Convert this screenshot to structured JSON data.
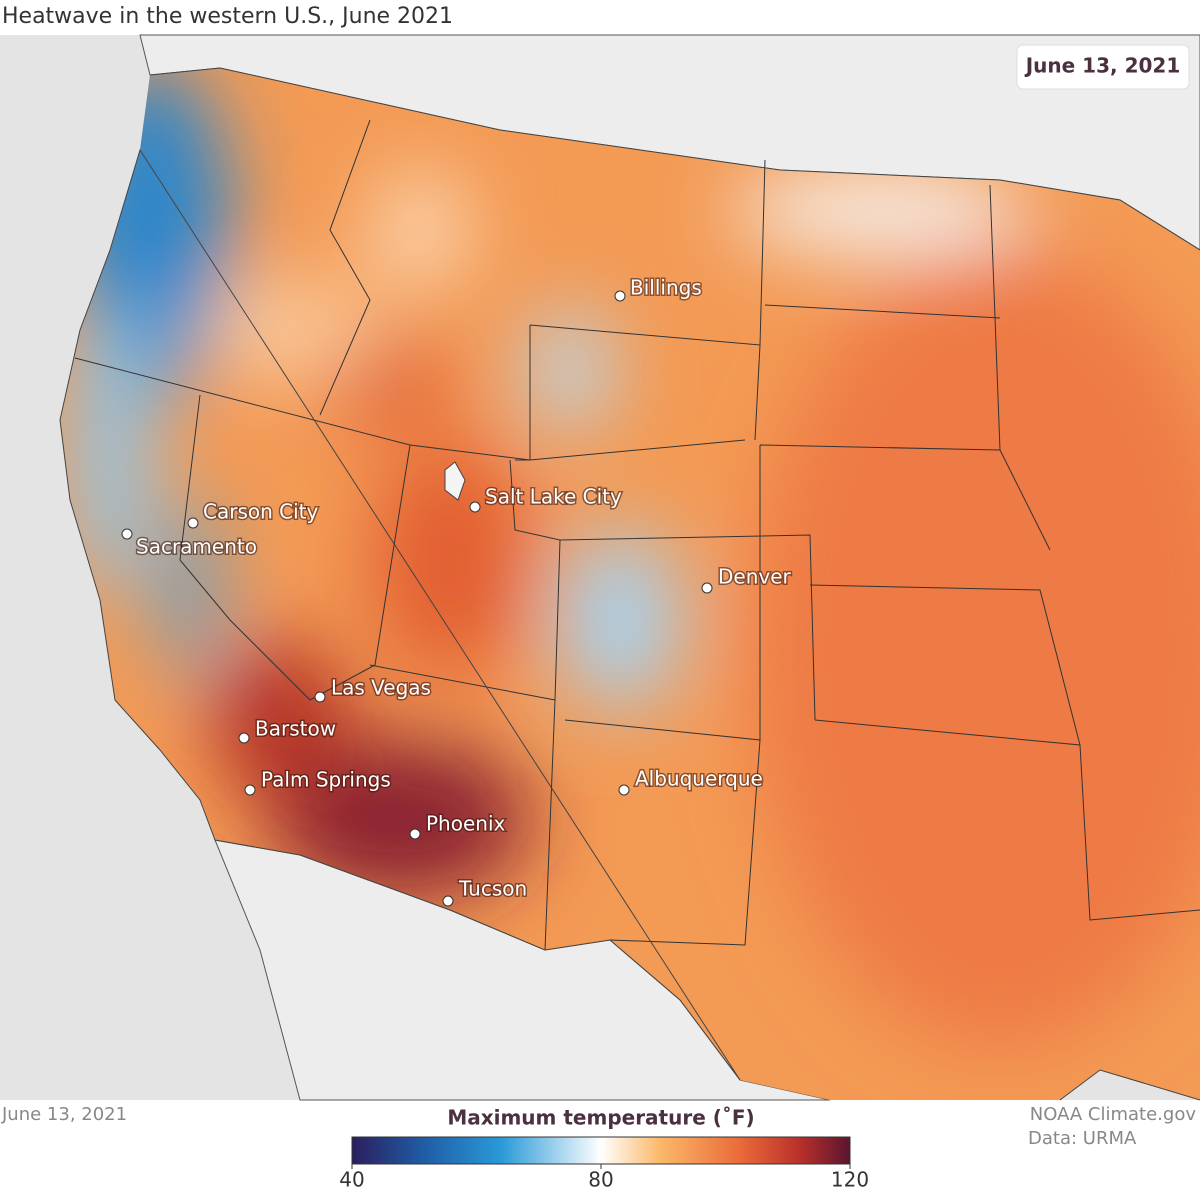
{
  "title": "Heatwave in the western U.S., June 2021",
  "date_badge": "June 13, 2021",
  "cities": [
    "Billings",
    "Salt Lake City",
    "Carson City",
    "Sacramento",
    "Denver",
    "Las Vegas",
    "Barstow",
    "Palm Springs",
    "Albuquerque",
    "Phoenix",
    "Tucson"
  ],
  "footer": {
    "date": "June 13, 2021",
    "credit": "NOAA Climate.gov",
    "source": "Data: URMA"
  },
  "legend": {
    "title": "Maximum temperature (˚F)",
    "ticks": [
      40,
      80,
      120
    ]
  }
}
